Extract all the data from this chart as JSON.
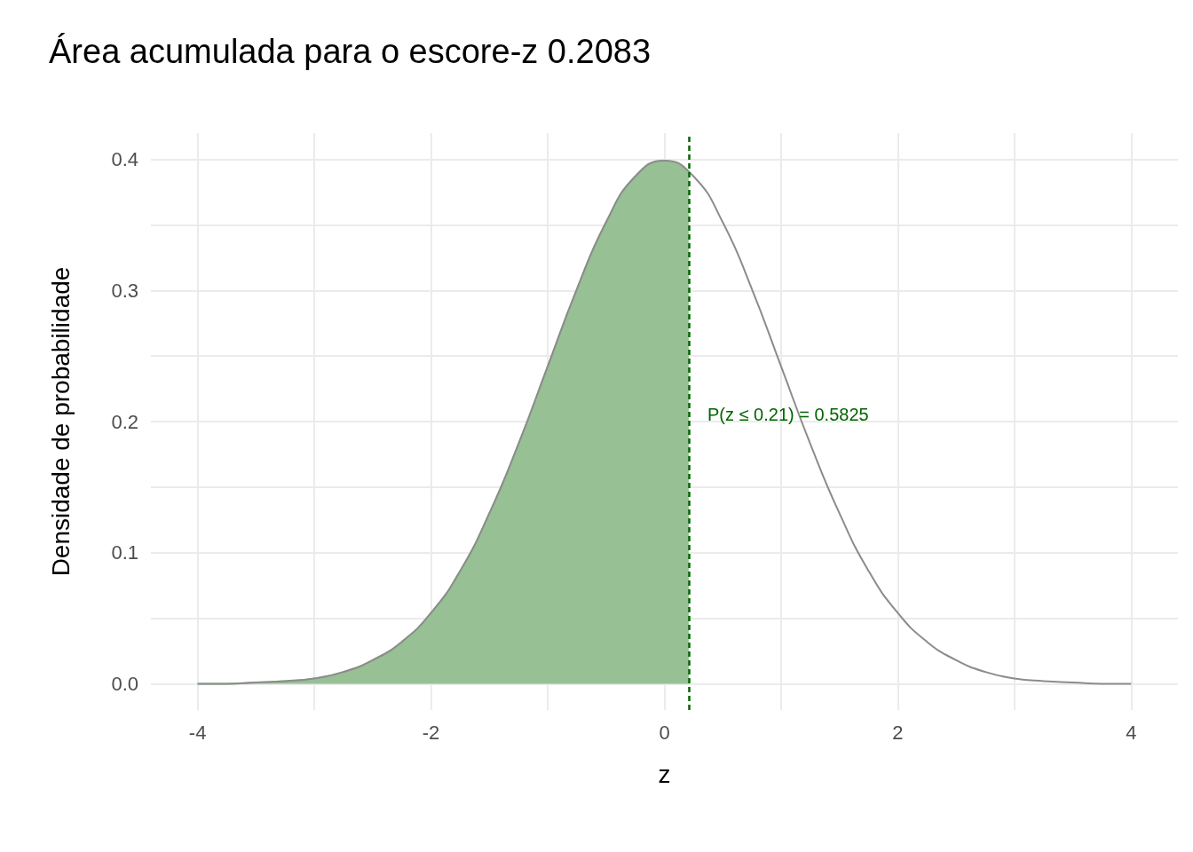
{
  "chart_data": {
    "type": "line",
    "title": "Área acumulada para o escore-z 0.2083",
    "xlabel": "z",
    "ylabel": "Densidade de probabilidade",
    "xlim": [
      -4.4,
      4.4
    ],
    "ylim": [
      -0.02,
      0.42
    ],
    "xticks": [
      -4,
      {
        "value": -3,
        "label": null
      },
      -2,
      {
        "value": -1,
        "label": null
      },
      0,
      {
        "value": 1,
        "label": null
      },
      2,
      {
        "value": 3,
        "label": null
      },
      4
    ],
    "yticks": [
      {
        "value": 0,
        "label": "0.0"
      },
      {
        "value": 0.05,
        "label": null
      },
      {
        "value": 0.1,
        "label": "0.1"
      },
      {
        "value": 0.15,
        "label": null
      },
      {
        "value": 0.2,
        "label": "0.2"
      },
      {
        "value": 0.25,
        "label": null
      },
      {
        "value": 0.3,
        "label": "0.3"
      },
      {
        "value": 0.35,
        "label": null
      },
      {
        "value": 0.4,
        "label": "0.4"
      }
    ],
    "grid": true,
    "marker": "none",
    "series": [
      {
        "type": "area",
        "color": "#97c095",
        "x": [
          -4,
          -3.75,
          -3.5,
          -3.25,
          -3,
          -2.75,
          -2.5,
          -2.25,
          -2,
          -1.75,
          -1.5,
          -1.25,
          -1,
          -0.75,
          -0.5,
          -0.25,
          0,
          0.2083
        ],
        "values": [
          0.0,
          0.0,
          0.001,
          0.002,
          0.004,
          0.009,
          0.018,
          0.032,
          0.054,
          0.086,
          0.13,
          0.183,
          0.242,
          0.301,
          0.352,
          0.387,
          0.399,
          0.39
        ]
      },
      {
        "color": "#8c8c8c",
        "x": [
          -4,
          -3.75,
          -3.5,
          -3.25,
          -3,
          -2.75,
          -2.5,
          -2.25,
          -2,
          -1.75,
          -1.5,
          -1.25,
          -1,
          -0.75,
          -0.5,
          -0.25,
          0,
          0.25,
          0.5,
          0.75,
          1,
          1.25,
          1.5,
          1.75,
          2,
          2.25,
          2.5,
          2.75,
          3,
          3.25,
          3.5,
          3.75,
          4
        ],
        "values": [
          0.0,
          0.0,
          0.001,
          0.002,
          0.004,
          0.009,
          0.018,
          0.032,
          0.054,
          0.086,
          0.13,
          0.183,
          0.242,
          0.301,
          0.352,
          0.387,
          0.399,
          0.387,
          0.352,
          0.301,
          0.242,
          0.183,
          0.13,
          0.086,
          0.054,
          0.032,
          0.018,
          0.009,
          0.004,
          0.002,
          0.001,
          0.0,
          0.0
        ]
      }
    ],
    "ref_lines": [
      {
        "axis": "x",
        "value": 0.2083,
        "label": null,
        "color": "#006400",
        "line_style": "dashed"
      }
    ],
    "annotations": [
      "P(z ≤ 0.21) = 0.5825"
    ]
  }
}
